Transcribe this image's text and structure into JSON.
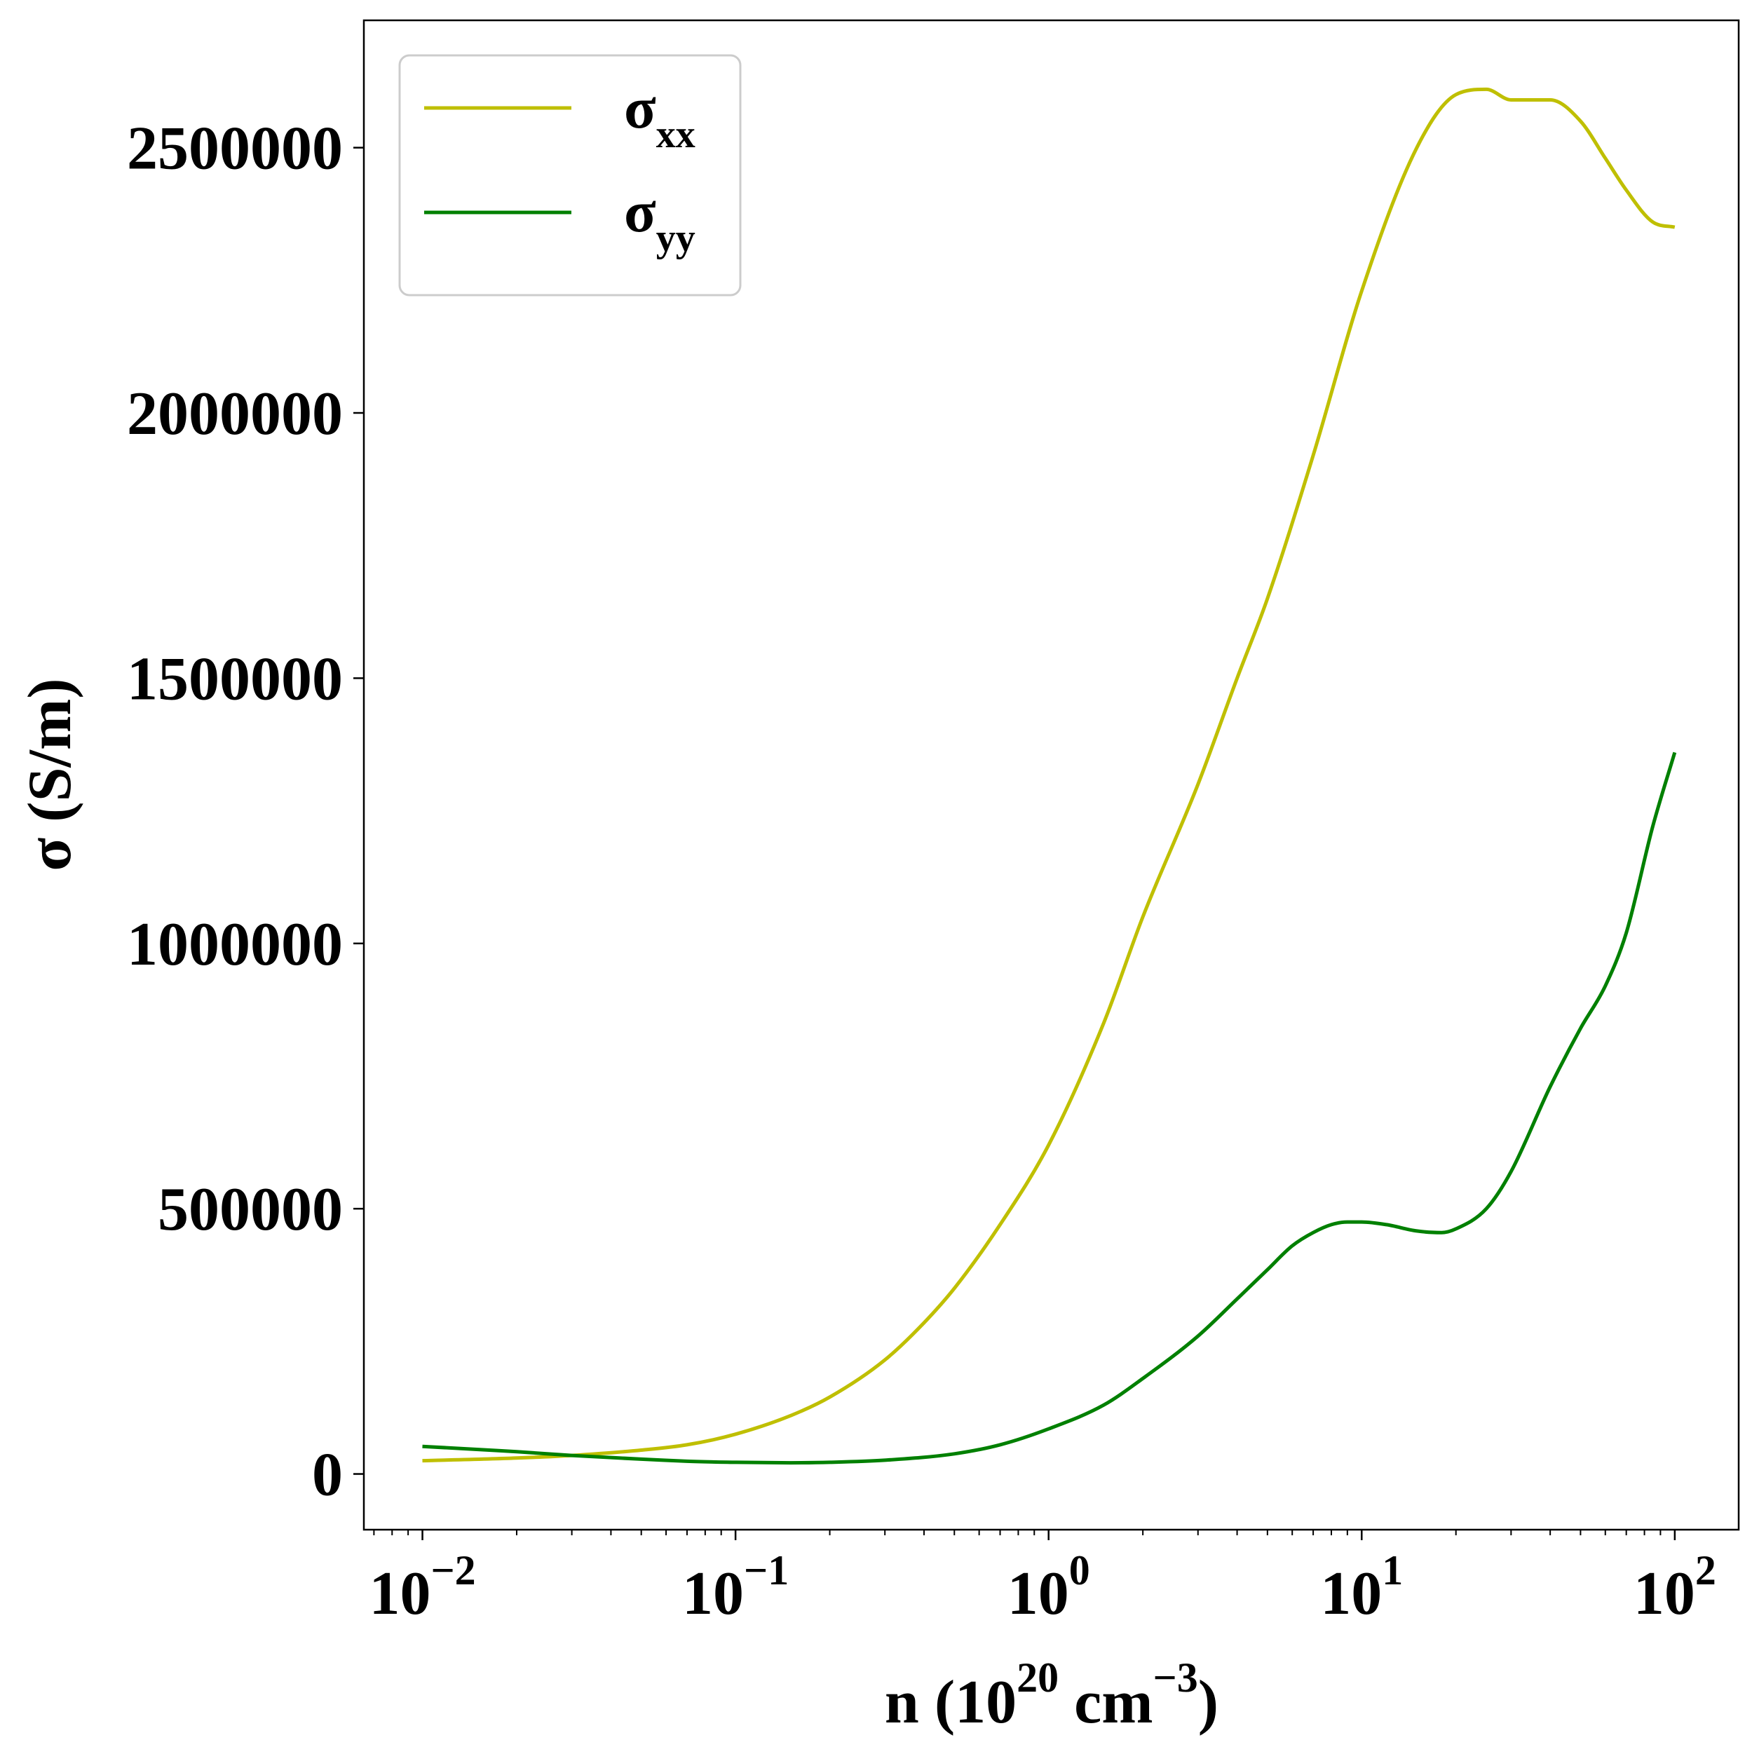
{
  "chart_data": {
    "type": "line",
    "xscale": "log",
    "xlim": [
      0.0065,
      160
    ],
    "ylim": [
      -105000,
      2740000
    ],
    "grid": false,
    "legend_position": "top-left",
    "xlabel": {
      "prefix": "n (10",
      "exp1": "20",
      "middle": " cm",
      "exp2": "−3",
      "suffix": ")"
    },
    "ylabel": "σ (S/m)",
    "yticks": [
      {
        "value": 0,
        "label": "0"
      },
      {
        "value": 500000,
        "label": "500000"
      },
      {
        "value": 1000000,
        "label": "1000000"
      },
      {
        "value": 1500000,
        "label": "1500000"
      },
      {
        "value": 2000000,
        "label": "2000000"
      },
      {
        "value": 2500000,
        "label": "2500000"
      }
    ],
    "xticks": [
      {
        "value": 0.01,
        "base": "10",
        "exp": "−2"
      },
      {
        "value": 0.1,
        "base": "10",
        "exp": "−1"
      },
      {
        "value": 1,
        "base": "10",
        "exp": "0"
      },
      {
        "value": 10,
        "base": "10",
        "exp": "1"
      },
      {
        "value": 100,
        "base": "10",
        "exp": "2"
      }
    ],
    "series": [
      {
        "name": "σ",
        "sub": "xx",
        "color": "#bfbf00",
        "points": [
          [
            0.01,
            25000
          ],
          [
            0.02,
            30000
          ],
          [
            0.03,
            35000
          ],
          [
            0.05,
            45000
          ],
          [
            0.07,
            55000
          ],
          [
            0.1,
            75000
          ],
          [
            0.15,
            110000
          ],
          [
            0.2,
            145000
          ],
          [
            0.3,
            215000
          ],
          [
            0.4,
            285000
          ],
          [
            0.5,
            350000
          ],
          [
            0.7,
            470000
          ],
          [
            1.0,
            620000
          ],
          [
            1.5,
            850000
          ],
          [
            2.0,
            1050000
          ],
          [
            3.0,
            1300000
          ],
          [
            4.0,
            1500000
          ],
          [
            5.0,
            1650000
          ],
          [
            7.0,
            1920000
          ],
          [
            10.0,
            2230000
          ],
          [
            15.0,
            2500000
          ],
          [
            20.0,
            2600000
          ],
          [
            25.0,
            2610000
          ],
          [
            30.0,
            2590000
          ],
          [
            40.0,
            2590000
          ],
          [
            50.0,
            2550000
          ],
          [
            60.0,
            2480000
          ],
          [
            70.0,
            2420000
          ],
          [
            85.0,
            2360000
          ],
          [
            100.0,
            2350000
          ]
        ]
      },
      {
        "name": "σ",
        "sub": "yy",
        "color": "#008000",
        "points": [
          [
            0.01,
            52000
          ],
          [
            0.02,
            42000
          ],
          [
            0.03,
            35000
          ],
          [
            0.05,
            28000
          ],
          [
            0.07,
            24000
          ],
          [
            0.1,
            22000
          ],
          [
            0.15,
            21000
          ],
          [
            0.2,
            22000
          ],
          [
            0.3,
            26000
          ],
          [
            0.5,
            38000
          ],
          [
            0.7,
            55000
          ],
          [
            1.0,
            85000
          ],
          [
            1.5,
            130000
          ],
          [
            2.0,
            180000
          ],
          [
            3.0,
            260000
          ],
          [
            4.0,
            330000
          ],
          [
            5.0,
            385000
          ],
          [
            6.0,
            430000
          ],
          [
            7.0,
            455000
          ],
          [
            8.0,
            470000
          ],
          [
            9.0,
            475000
          ],
          [
            10.0,
            475000
          ],
          [
            12.0,
            470000
          ],
          [
            15.0,
            458000
          ],
          [
            18.0,
            455000
          ],
          [
            20.0,
            462000
          ],
          [
            25.0,
            500000
          ],
          [
            30.0,
            570000
          ],
          [
            40.0,
            730000
          ],
          [
            50.0,
            840000
          ],
          [
            60.0,
            920000
          ],
          [
            70.0,
            1020000
          ],
          [
            85.0,
            1220000
          ],
          [
            100.0,
            1360000
          ]
        ]
      }
    ]
  }
}
